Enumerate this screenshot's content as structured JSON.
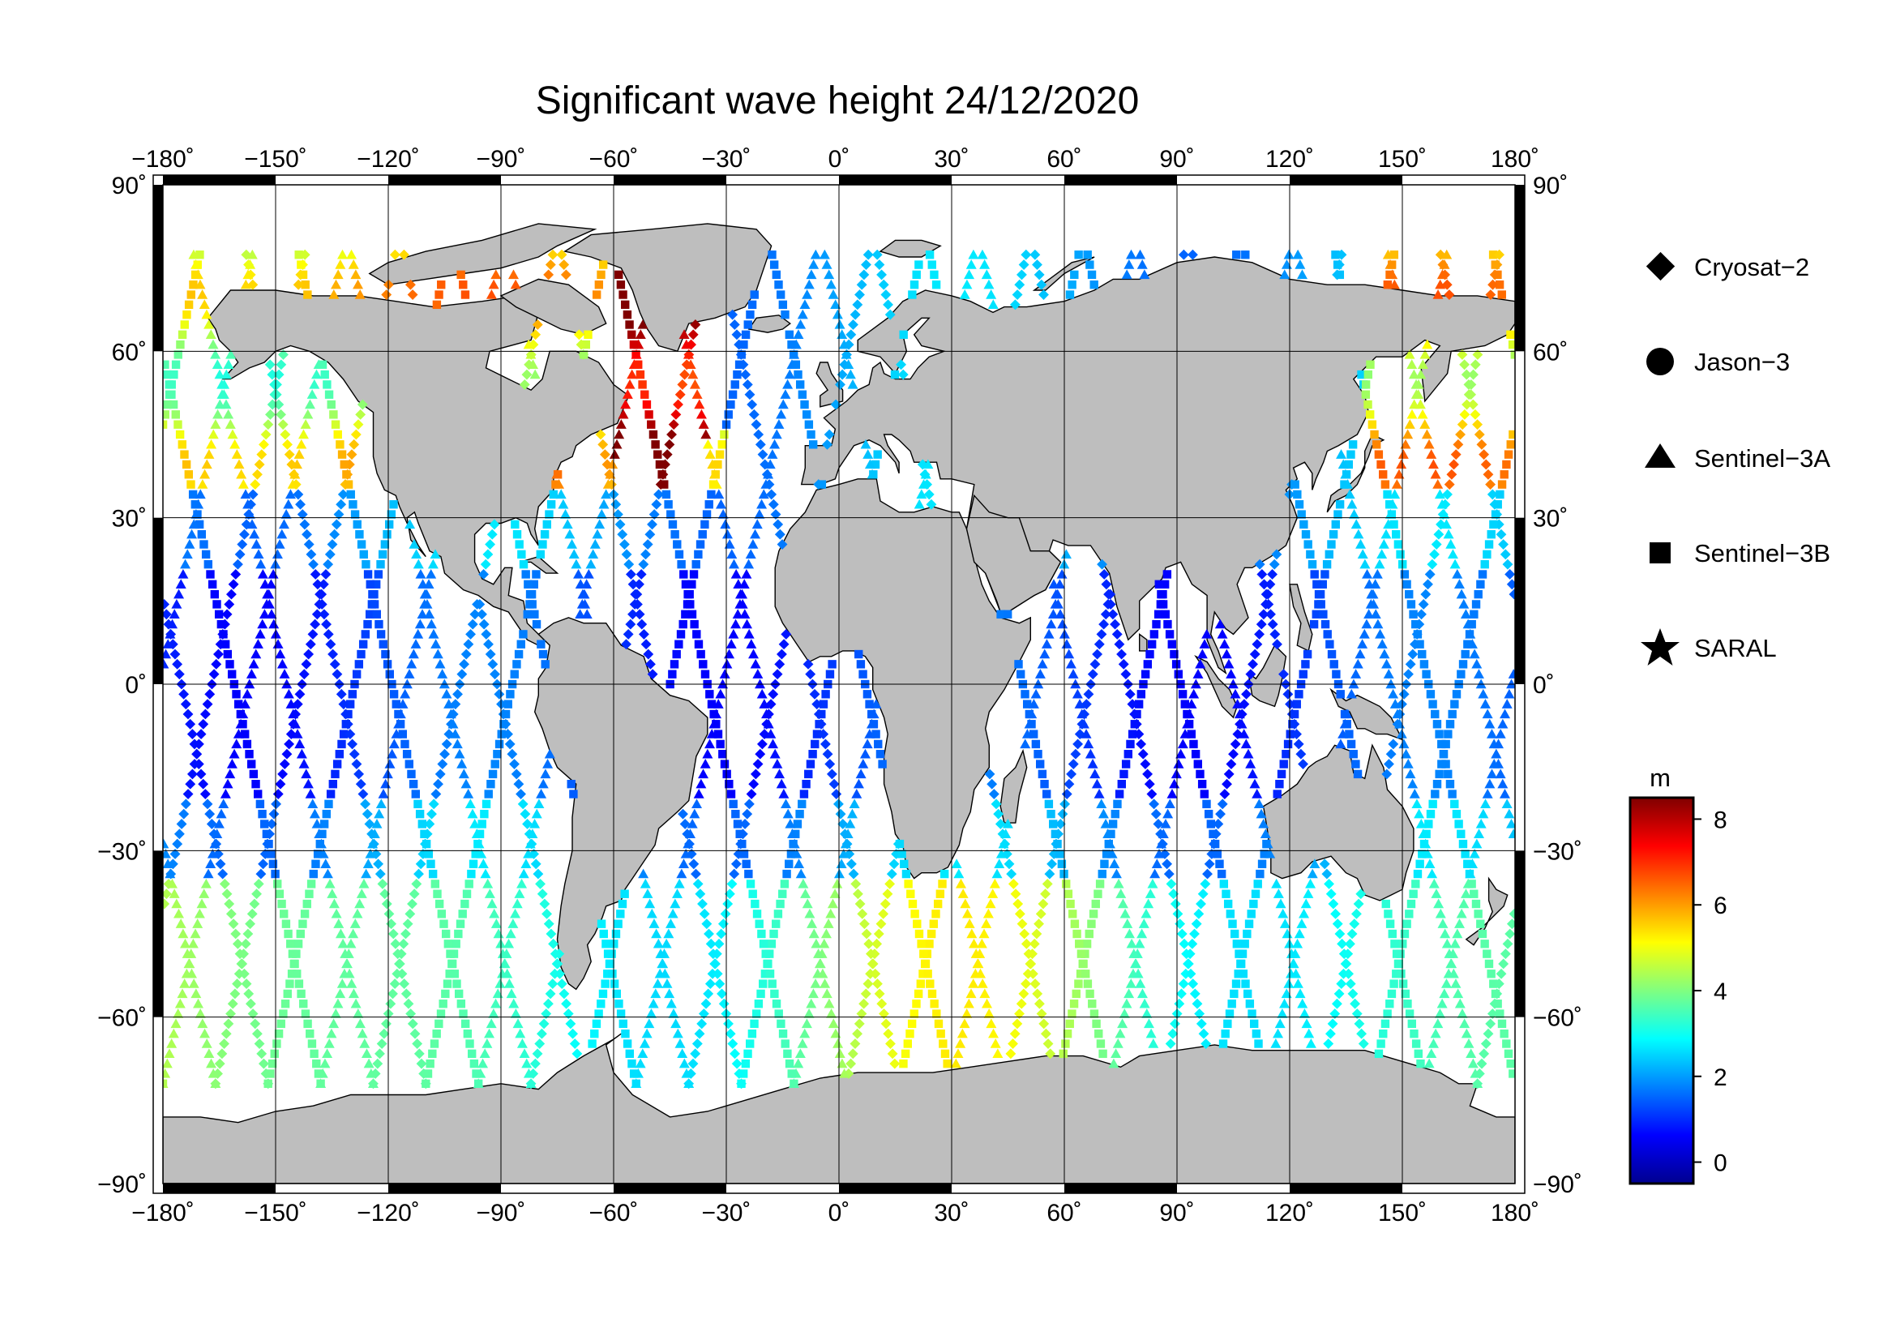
{
  "title": "Significant wave height 24/12/2020",
  "map": {
    "lon_range": [
      -180,
      180
    ],
    "lat_range": [
      -90,
      90
    ],
    "lon_ticks": [
      "−180˚",
      "−150˚",
      "−120˚",
      "−90˚",
      "−60˚",
      "−30˚",
      "0˚",
      "30˚",
      "60˚",
      "90˚",
      "120˚",
      "150˚",
      "180˚"
    ],
    "lat_ticks_left": [
      "90˚",
      "60˚",
      "30˚",
      "0˚",
      "−30˚",
      "−60˚",
      "−90˚"
    ],
    "lat_ticks_right": [
      "90˚",
      "60˚",
      "30˚",
      "0˚",
      "−30˚",
      "−60˚",
      "−90˚"
    ],
    "grid_step_deg": 30,
    "land_color": "#bebebe",
    "ocean_color": "#ffffff"
  },
  "legend": {
    "items": [
      {
        "label": "Cryosat−2",
        "icon": "diamond-icon"
      },
      {
        "label": "Jason−3",
        "icon": "circle-icon"
      },
      {
        "label": "Sentinel−3A",
        "icon": "triangle-icon"
      },
      {
        "label": "Sentinel−3B",
        "icon": "square-icon"
      },
      {
        "label": "SARAL",
        "icon": "star-icon"
      }
    ]
  },
  "colorbar": {
    "unit": "m",
    "min": -0.5,
    "max": 8.5,
    "ticks": [
      "8",
      "6",
      "4",
      "2",
      "0"
    ],
    "colors": [
      "#00008f",
      "#0000ff",
      "#0080ff",
      "#00ffff",
      "#80ff80",
      "#ffff00",
      "#ff8000",
      "#ff0000",
      "#800000"
    ]
  },
  "chart_data": {
    "type": "scatter",
    "title": "Significant wave height 24/12/2020",
    "xlabel": "",
    "ylabel": "",
    "xlim": [
      -180,
      180
    ],
    "ylim": [
      -90,
      90
    ],
    "value_unit": "m",
    "value_range": [
      -0.5,
      8.5
    ],
    "series": [
      {
        "name": "Cryosat−2",
        "marker": "diamond"
      },
      {
        "name": "Jason−3",
        "marker": "circle"
      },
      {
        "name": "Sentinel−3A",
        "marker": "triangle"
      },
      {
        "name": "Sentinel−3B",
        "marker": "square"
      },
      {
        "name": "SARAL",
        "marker": "star"
      }
    ]
  }
}
